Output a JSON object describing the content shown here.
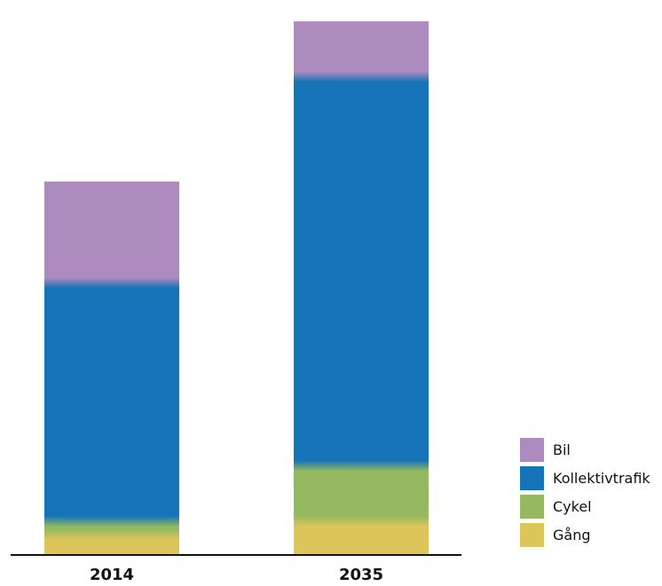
{
  "chart_data": {
    "type": "bar",
    "stacked": true,
    "categories": [
      "2014",
      "2035"
    ],
    "series": [
      {
        "name": "Gång",
        "values": [
          6,
          10
        ],
        "color": "#dcc659"
      },
      {
        "name": "Cykel",
        "values": [
          4,
          17
        ],
        "color": "#95b960"
      },
      {
        "name": "Kollektivtrafik",
        "values": [
          73,
          119
        ],
        "color": "#1573b8"
      },
      {
        "name": "Bil",
        "values": [
          31,
          17
        ],
        "color": "#ad8bbf"
      }
    ],
    "title": "",
    "xlabel": "",
    "ylabel": "",
    "ylim": [
      0,
      166
    ],
    "grid": false,
    "legend_position": "bottom-right"
  }
}
